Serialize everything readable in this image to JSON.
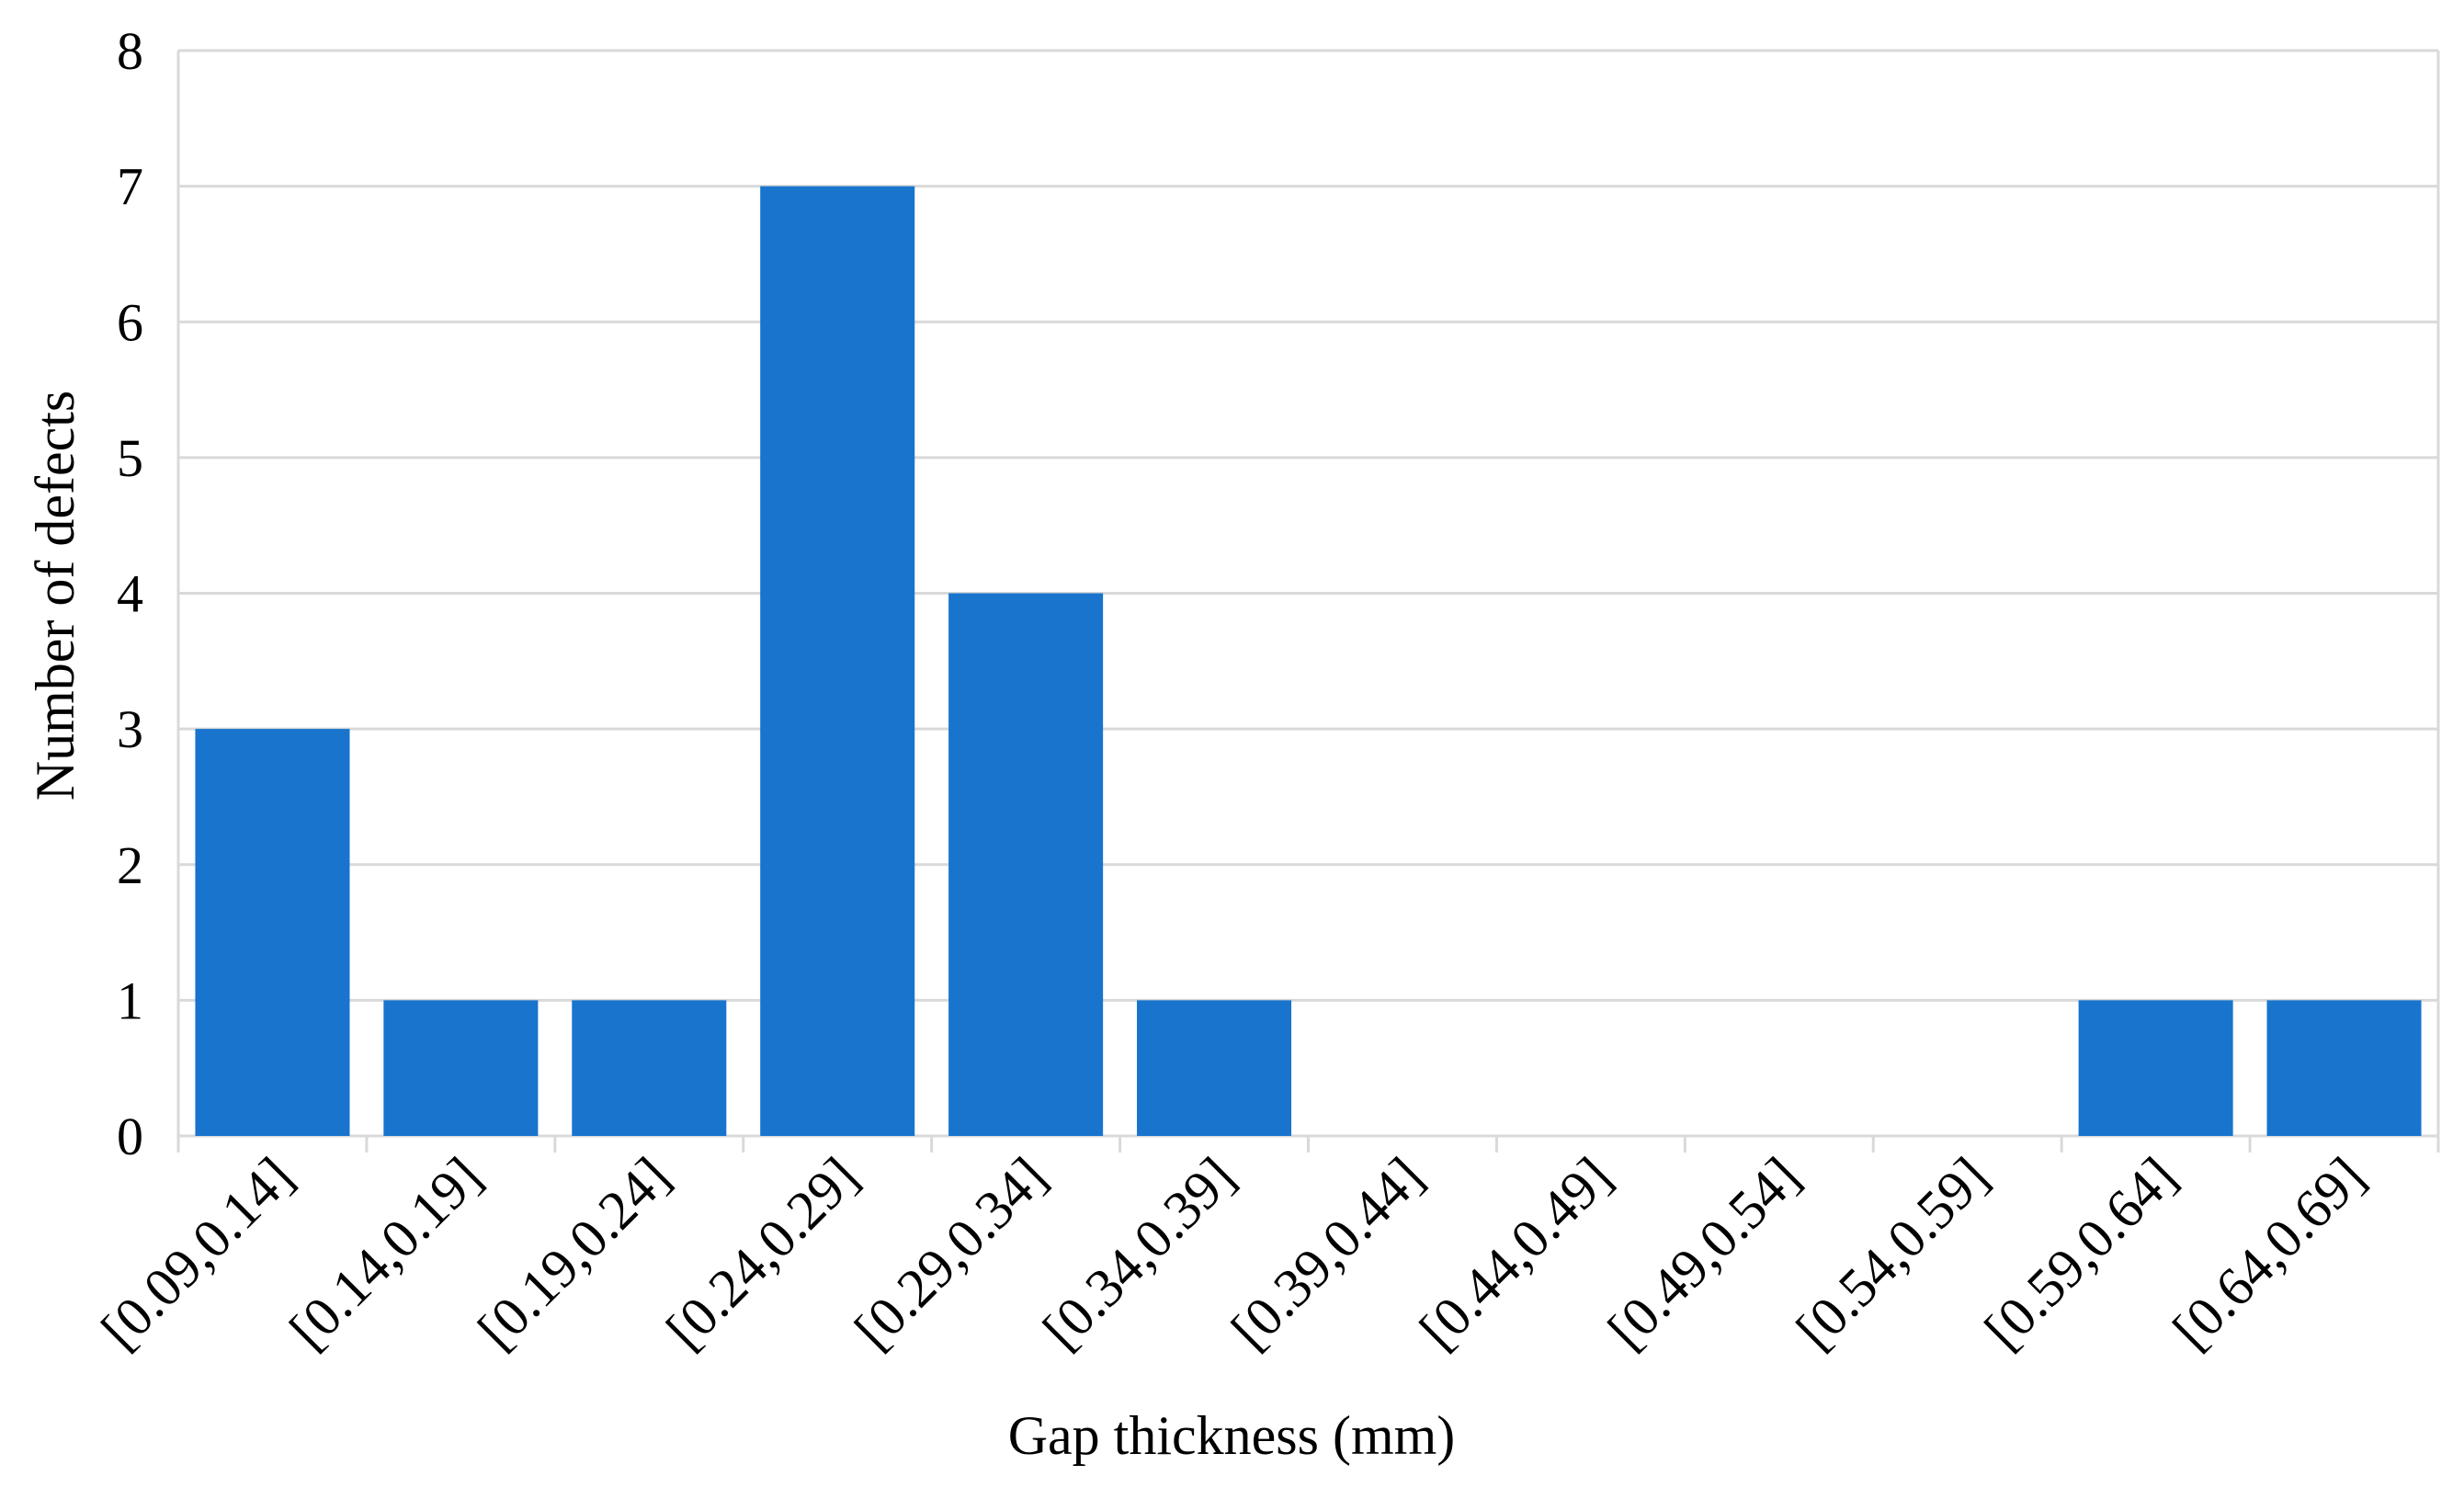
{
  "chart_data": {
    "type": "bar",
    "x_label": "Gap thickness (mm)",
    "y_label": "Number of defects",
    "categories": [
      "[0.09,0.14]",
      "[0.14,0.19]",
      "[0.19,0.24]",
      "[0.24,0.29]",
      "[0.29,0.34]",
      "[0.34,0.39]",
      "[0.39,0.44]",
      "[0.44,0.49]",
      "[0.49,0.54]",
      "[0.54,0.59]",
      "[0.59,0.64]",
      "[0.64,0.69]"
    ],
    "values": [
      3,
      1,
      1,
      7,
      4,
      1,
      0,
      0,
      0,
      0,
      1,
      1
    ],
    "color": "#1874CD",
    "ylim": [
      0,
      8
    ],
    "yticks": [
      0,
      1,
      2,
      3,
      4,
      5,
      6,
      7,
      8
    ],
    "grid": true
  }
}
